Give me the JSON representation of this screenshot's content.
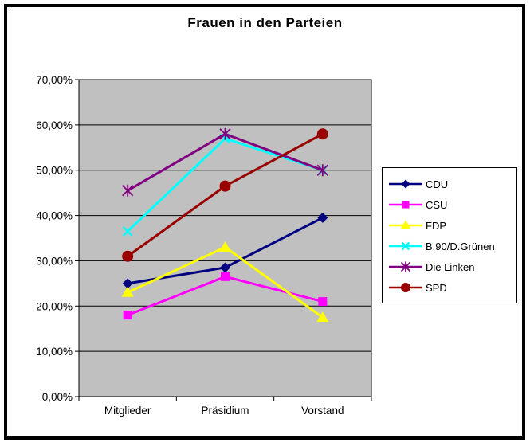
{
  "title": "Frauen in den Parteien",
  "chart_data": {
    "type": "line",
    "categories": [
      "Mitglieder",
      "Präsidium",
      "Vorstand"
    ],
    "series": [
      {
        "name": "CDU",
        "color": "#000080",
        "marker": "diamond",
        "values": [
          25.0,
          28.5,
          39.5
        ]
      },
      {
        "name": "CSU",
        "color": "#FF00FF",
        "marker": "square",
        "values": [
          18.0,
          26.5,
          21.0
        ]
      },
      {
        "name": "FDP",
        "color": "#FFFF00",
        "marker": "triangle",
        "values": [
          23.0,
          33.0,
          17.5
        ]
      },
      {
        "name": "B.90/D.Grünen",
        "color": "#00FFFF",
        "marker": "x",
        "values": [
          36.5,
          57.0,
          50.0
        ]
      },
      {
        "name": "Die Linken",
        "color": "#800080",
        "marker": "star",
        "values": [
          45.5,
          58.0,
          50.0
        ]
      },
      {
        "name": "SPD",
        "color": "#990000",
        "marker": "circle",
        "values": [
          31.0,
          46.5,
          58.0
        ]
      }
    ],
    "ylim": [
      0,
      70
    ],
    "ytick_step": 10,
    "ytick_labels": [
      "0,00%",
      "10,00%",
      "20,00%",
      "30,00%",
      "40,00%",
      "50,00%",
      "60,00%",
      "70,00%"
    ],
    "grid": true,
    "legend_position": "right",
    "plot_bg": "#C0C0C0",
    "axis_color": "#000000",
    "chart_bg": "#FFFFFF"
  }
}
